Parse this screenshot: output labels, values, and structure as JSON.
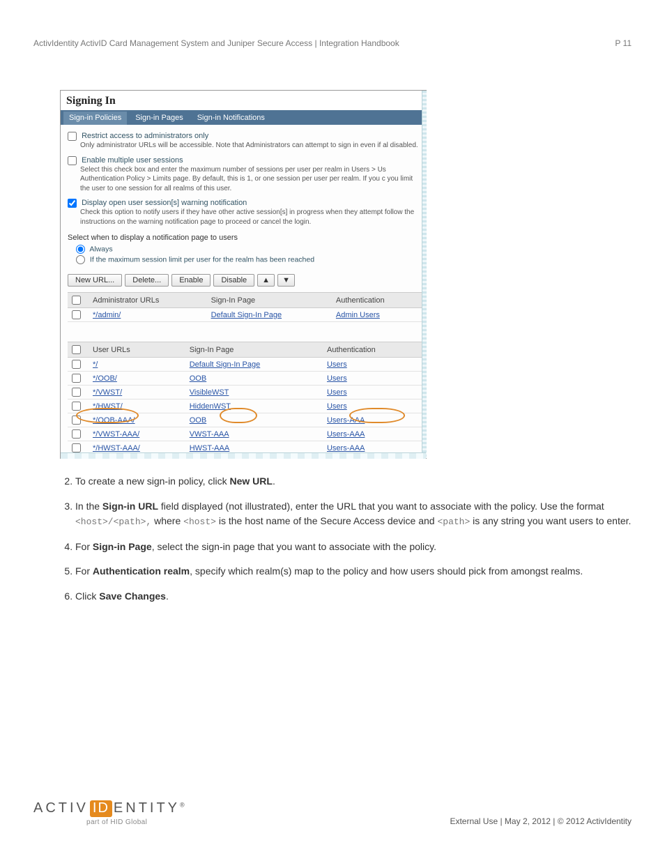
{
  "header": {
    "title": "ActivIdentity ActivID Card Management System and Juniper Secure Access | Integration Handbook",
    "page": "P 11"
  },
  "panel": {
    "title": "Signing In",
    "tabs": [
      "Sign-in Policies",
      "Sign-in Pages",
      "Sign-in Notifications"
    ],
    "activeTab": 0,
    "options": [
      {
        "checked": false,
        "label": "Restrict access to administrators only",
        "desc": "Only administrator URLs will be accessible. Note that Administrators can attempt to sign in even if al disabled."
      },
      {
        "checked": false,
        "label": "Enable multiple user sessions",
        "desc": "Select this check box and enter the maximum number of sessions per user per realm in Users > Us Authentication Policy > Limits page. By default, this is 1, or one session per user per realm. If you c you limit the user to one session for all realms of this user."
      },
      {
        "checked": true,
        "label": "Display open user session[s] warning notification",
        "desc": "Check this option to notify users if they have other active session[s] in progress when they attempt follow the instructions on the warning notification page to proceed or cancel the login."
      }
    ],
    "notifyHeading": "Select when to display a notification page to users",
    "radios": {
      "always": "Always",
      "limit": "If the maximum session limit per user for the realm has been reached"
    },
    "buttons": {
      "newUrl": "New URL...",
      "delete": "Delete...",
      "enable": "Enable",
      "disable": "Disable"
    },
    "adminHeader": {
      "c1": "Administrator URLs",
      "c2": "Sign-In Page",
      "c3": "Authentication"
    },
    "adminRows": [
      {
        "url": "*/admin/",
        "page": "Default Sign-In Page",
        "auth": "Admin Users"
      }
    ],
    "userHeader": {
      "c1": "User URLs",
      "c2": "Sign-In Page",
      "c3": "Authentication"
    },
    "userRows": [
      {
        "url": "*/",
        "page": "Default Sign-In Page",
        "auth": "Users"
      },
      {
        "url": "*/OOB/",
        "page": "OOB",
        "auth": "Users"
      },
      {
        "url": "*/VWST/",
        "page": "VisibleWST",
        "auth": "Users"
      },
      {
        "url": "*/HWST/",
        "page": "HiddenWST",
        "auth": "Users"
      },
      {
        "url": "*/OOB-AAA/",
        "page": "OOB",
        "auth": "Users-AAA",
        "hl": true
      },
      {
        "url": "*/VWST-AAA/",
        "page": "VWST-AAA",
        "auth": "Users-AAA"
      },
      {
        "url": "*/HWST-AAA/",
        "page": "HWST-AAA",
        "auth": "Users-AAA"
      }
    ]
  },
  "steps": {
    "s2a": "To create a new sign-in policy, click ",
    "s2b": "New URL",
    "s2c": ".",
    "s3a": "In the ",
    "s3b": "Sign-in URL",
    "s3c": " field displayed (not illustrated), enter the URL that you want to associate with the policy. Use the format ",
    "s3d": "<host>/<path>,",
    "s3e": " where ",
    "s3f": "<host>",
    "s3g": " is the host name of the Secure Access device and ",
    "s3h": "<path>",
    "s3i": " is any string you want users to enter.",
    "s4a": "For ",
    "s4b": "Sign-in Page",
    "s4c": ", select the sign-in page that you want to associate with the policy.",
    "s5a": "For ",
    "s5b": "Authentication realm",
    "s5c": ", specify which realm(s) map to the policy and how users should pick from amongst realms.",
    "s6a": "Click ",
    "s6b": "Save Changes",
    "s6c": "."
  },
  "footer": {
    "logoA": "ACTIV",
    "logoB": "ID",
    "logoC": "ENTITY",
    "logoReg": "®",
    "sub": "part of HID Global",
    "right": "External Use | May 2, 2012 | © 2012 ActivIdentity"
  }
}
